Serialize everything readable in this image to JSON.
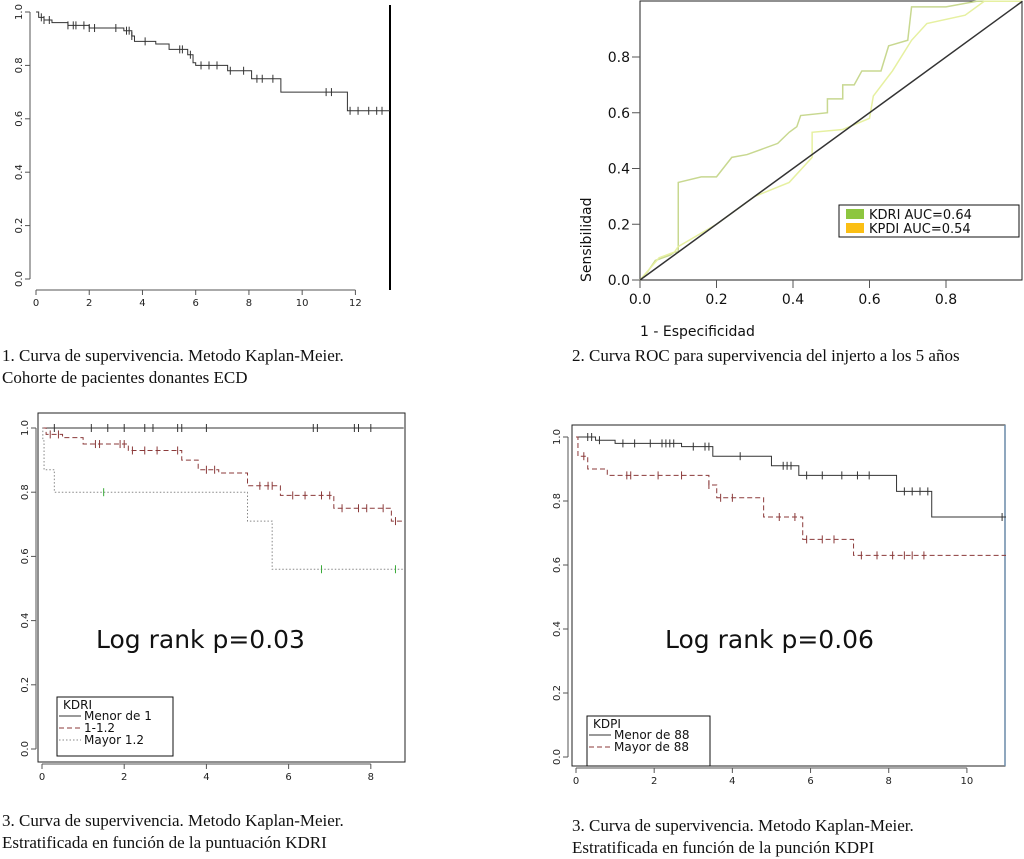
{
  "chart_data": [
    {
      "type": "line",
      "subtype": "kaplan-meier",
      "xlim": [
        0,
        13.3
      ],
      "ylim": [
        0,
        1
      ],
      "xticks": [
        0,
        2,
        4,
        6,
        8,
        10,
        12
      ],
      "yticks": [
        "0.0",
        "0.2",
        "0.4",
        "0.6",
        "0.8",
        "1.0"
      ],
      "series": [
        {
          "color": "#333333",
          "style": "solid",
          "steps": [
            [
              0,
              1.0
            ],
            [
              0.1,
              0.98
            ],
            [
              0.3,
              0.97
            ],
            [
              0.6,
              0.96
            ],
            [
              1.2,
              0.95
            ],
            [
              2.0,
              0.94
            ],
            [
              3.3,
              0.93
            ],
            [
              3.6,
              0.91
            ],
            [
              3.7,
              0.89
            ],
            [
              4.5,
              0.88
            ],
            [
              5.0,
              0.86
            ],
            [
              5.7,
              0.84
            ],
            [
              5.9,
              0.81
            ],
            [
              6.0,
              0.8
            ],
            [
              7.2,
              0.78
            ],
            [
              8.1,
              0.75
            ],
            [
              9.2,
              0.7
            ],
            [
              11.7,
              0.63
            ]
          ],
          "censored": [
            0.2,
            0.3,
            0.5,
            1.2,
            1.4,
            1.5,
            1.8,
            2.0,
            2.2,
            3.0,
            3.4,
            3.5,
            3.6,
            4.1,
            5.4,
            5.5,
            5.8,
            6.2,
            6.5,
            6.8,
            7.3,
            7.8,
            8.3,
            8.5,
            8.9,
            10.9,
            11.1,
            11.8,
            12.1,
            12.5,
            12.8,
            13.0
          ]
        }
      ]
    },
    {
      "type": "line",
      "subtype": "roc",
      "xlim": [
        0,
        1
      ],
      "ylim": [
        0,
        1
      ],
      "xticks": [
        "0.0",
        "0.2",
        "0.4",
        "0.6",
        "0.8"
      ],
      "yticks": [
        "0.0",
        "0.2",
        "0.4",
        "0.6",
        "0.8"
      ],
      "xlabel": "1 - Especificidad",
      "ylabel": "Sensibilidad",
      "legend_position": "bottom-right",
      "series": [
        {
          "name": "KDRI AUC=0.64",
          "color": "#c8d890",
          "legend_color": "#8dc63f",
          "points": [
            [
              0,
              0
            ],
            [
              0.02,
              0.03
            ],
            [
              0.04,
              0.07
            ],
            [
              0.08,
              0.09
            ],
            [
              0.09,
              0.1
            ],
            [
              0.1,
              0.1
            ],
            [
              0.1,
              0.35
            ],
            [
              0.16,
              0.37
            ],
            [
              0.2,
              0.37
            ],
            [
              0.24,
              0.44
            ],
            [
              0.28,
              0.45
            ],
            [
              0.36,
              0.49
            ],
            [
              0.39,
              0.53
            ],
            [
              0.41,
              0.55
            ],
            [
              0.42,
              0.59
            ],
            [
              0.49,
              0.6
            ],
            [
              0.49,
              0.65
            ],
            [
              0.53,
              0.65
            ],
            [
              0.53,
              0.7
            ],
            [
              0.56,
              0.7
            ],
            [
              0.58,
              0.75
            ],
            [
              0.63,
              0.75
            ],
            [
              0.65,
              0.84
            ],
            [
              0.7,
              0.86
            ],
            [
              0.71,
              0.98
            ],
            [
              0.8,
              0.98
            ],
            [
              0.88,
              1
            ],
            [
              1,
              1
            ]
          ]
        },
        {
          "name": "KPDI AUC=0.54",
          "color": "#e6f0a0",
          "legend_color": "#fbbf14",
          "points": [
            [
              0,
              0
            ],
            [
              0.05,
              0.08
            ],
            [
              0.09,
              0.1
            ],
            [
              0.1,
              0.12
            ],
            [
              0.2,
              0.2
            ],
            [
              0.3,
              0.3
            ],
            [
              0.39,
              0.35
            ],
            [
              0.45,
              0.44
            ],
            [
              0.45,
              0.53
            ],
            [
              0.53,
              0.54
            ],
            [
              0.6,
              0.58
            ],
            [
              0.61,
              0.66
            ],
            [
              0.66,
              0.75
            ],
            [
              0.71,
              0.86
            ],
            [
              0.75,
              0.92
            ],
            [
              0.85,
              0.95
            ],
            [
              0.9,
              1
            ],
            [
              1,
              1
            ]
          ]
        },
        {
          "color": "#333333",
          "points": [
            [
              0,
              0
            ],
            [
              1,
              1
            ]
          ]
        }
      ]
    },
    {
      "type": "line",
      "subtype": "kaplan-meier",
      "xlim": [
        0,
        8.8
      ],
      "ylim": [
        0,
        1
      ],
      "xticks": [
        0,
        2,
        4,
        6,
        8
      ],
      "yticks": [
        "0.0",
        "0.2",
        "0.4",
        "0.6",
        "0.8",
        "1.0"
      ],
      "annotation": "Log rank p=0.03",
      "legend_title": "KDRI",
      "legend_position": "bottom-left",
      "series": [
        {
          "name": "Menor de 1",
          "color": "#333333",
          "style": "solid",
          "steps": [
            [
              0,
              1.0
            ]
          ],
          "censored": [
            0.3,
            1.2,
            1.6,
            2.0,
            2.5,
            2.7,
            3.3,
            3.4,
            4.0,
            6.6,
            6.7,
            7.6,
            7.7,
            8.0
          ]
        },
        {
          "name": "1-1.2",
          "color": "#8b3a3a",
          "style": "dashed",
          "steps": [
            [
              0,
              1.0
            ],
            [
              0.1,
              0.98
            ],
            [
              0.5,
              0.97
            ],
            [
              1.0,
              0.95
            ],
            [
              2.1,
              0.93
            ],
            [
              3.4,
              0.9
            ],
            [
              3.8,
              0.87
            ],
            [
              4.3,
              0.86
            ],
            [
              5.0,
              0.82
            ],
            [
              5.8,
              0.79
            ],
            [
              7.1,
              0.75
            ],
            [
              8.5,
              0.71
            ]
          ],
          "censored": [
            0.2,
            0.4,
            1.3,
            1.4,
            1.9,
            2.0,
            2.2,
            2.5,
            2.8,
            3.3,
            4.0,
            4.2,
            5.3,
            5.5,
            5.6,
            6.1,
            6.4,
            6.8,
            7.0,
            7.3,
            7.7,
            7.9,
            8.3,
            8.6
          ]
        },
        {
          "name": "Mayor 1.2",
          "color": "#888888",
          "style": "dotted",
          "steps": [
            [
              0,
              1.0
            ],
            [
              0.02,
              0.96
            ],
            [
              0.05,
              0.87
            ],
            [
              0.3,
              0.8
            ],
            [
              5.0,
              0.71
            ],
            [
              5.6,
              0.56
            ]
          ],
          "censored": [
            1.5,
            6.8,
            8.6
          ],
          "censor_color": "#3aaa3a"
        }
      ]
    },
    {
      "type": "line",
      "subtype": "kaplan-meier",
      "xlim": [
        0,
        11
      ],
      "ylim": [
        0,
        1
      ],
      "xticks": [
        0,
        2,
        4,
        6,
        8,
        10
      ],
      "yticks": [
        "0.0",
        "0.2",
        "0.4",
        "0.6",
        "0.8",
        "1.0"
      ],
      "annotation": "Log rank p=0.06",
      "legend_title": "KDPI",
      "legend_position": "bottom-left",
      "series": [
        {
          "name": "Menor de 88",
          "color": "#333333",
          "style": "solid",
          "steps": [
            [
              0,
              1.0
            ],
            [
              0.5,
              0.99
            ],
            [
              1.0,
              0.98
            ],
            [
              2.7,
              0.97
            ],
            [
              3.5,
              0.94
            ],
            [
              5.0,
              0.91
            ],
            [
              5.7,
              0.88
            ],
            [
              8.2,
              0.83
            ],
            [
              9.1,
              0.75
            ]
          ],
          "censored": [
            0.3,
            0.4,
            0.6,
            1.2,
            1.5,
            1.9,
            2.2,
            2.3,
            2.4,
            2.5,
            3.0,
            3.3,
            3.4,
            4.2,
            5.3,
            5.4,
            5.5,
            5.9,
            6.3,
            6.8,
            7.2,
            7.5,
            8.4,
            8.6,
            8.8,
            9.0,
            10.9
          ]
        },
        {
          "name": "Mayor de 88",
          "color": "#8b3a3a",
          "style": "dashed",
          "steps": [
            [
              0,
              1.0
            ],
            [
              0.05,
              0.94
            ],
            [
              0.3,
              0.9
            ],
            [
              0.8,
              0.88
            ],
            [
              3.4,
              0.85
            ],
            [
              3.6,
              0.81
            ],
            [
              4.8,
              0.75
            ],
            [
              5.8,
              0.68
            ],
            [
              7.1,
              0.63
            ]
          ],
          "censored": [
            0.2,
            1.3,
            1.4,
            2.1,
            2.7,
            3.4,
            3.7,
            4.0,
            5.2,
            5.6,
            5.9,
            6.3,
            6.6,
            7.3,
            7.7,
            8.1,
            8.4,
            8.6,
            8.9
          ]
        }
      ]
    }
  ],
  "captions": [
    [
      "1. Curva de supervivencia. Metodo Kaplan-Meier.",
      "Cohorte de pacientes donantes ECD"
    ],
    [
      "2. Curva ROC para supervivencia del injerto a los 5 años"
    ],
    [
      "3. Curva de supervivencia. Metodo Kaplan-Meier.",
      "Estratificada  en función de la puntuación KDRI"
    ],
    [
      "3. Curva de supervivencia. Metodo Kaplan-Meier.",
      "Estratificada  en función de la punción KDPI"
    ]
  ]
}
